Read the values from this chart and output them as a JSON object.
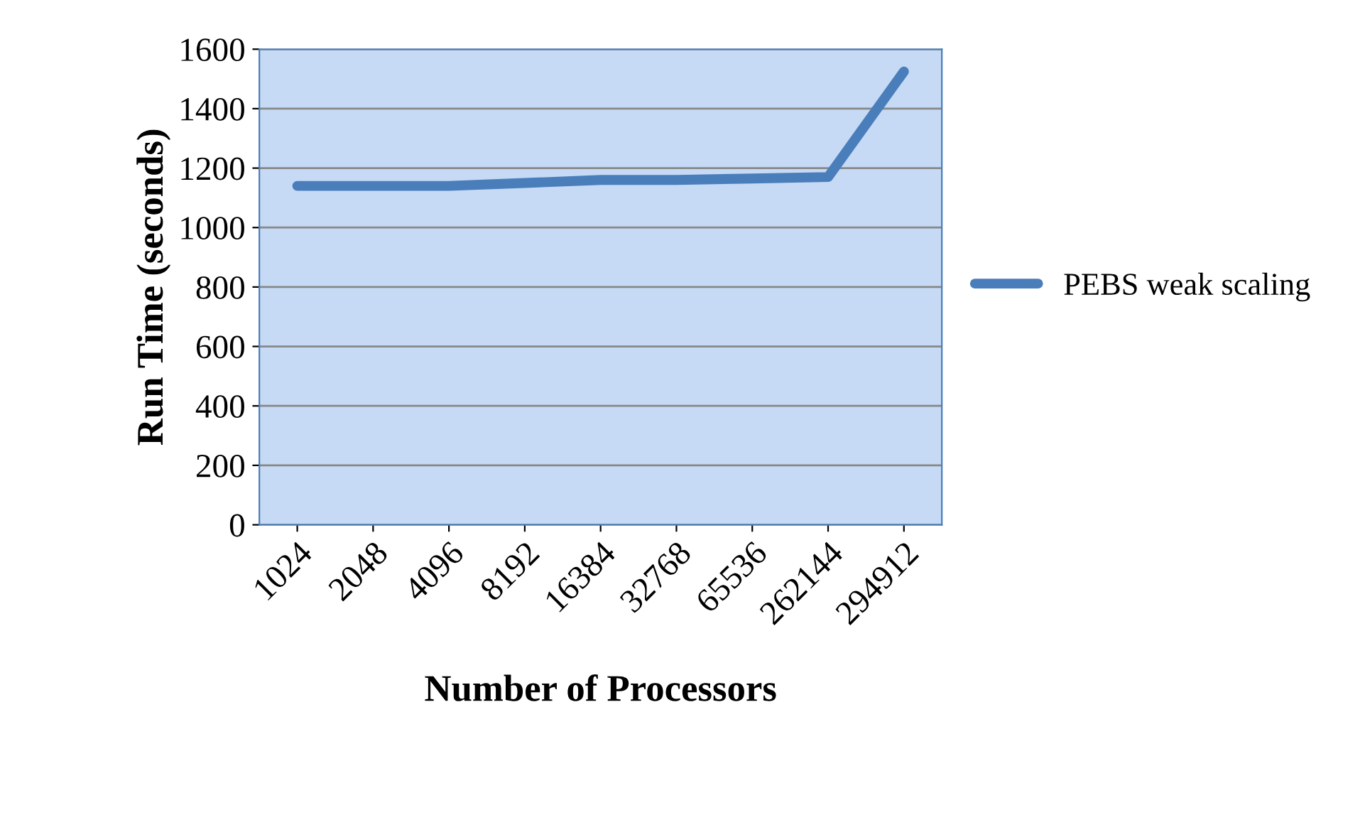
{
  "chart_data": {
    "type": "line",
    "xlabel": "Number of Processors",
    "ylabel": "Run Time (seconds)",
    "categories": [
      "1024",
      "2048",
      "4096",
      "8192",
      "16384",
      "32768",
      "65536",
      "262144",
      "294912"
    ],
    "series": [
      {
        "name": "PEBS weak scaling",
        "color": "#4a7ebb",
        "values": [
          1140,
          1140,
          1140,
          1150,
          1160,
          1160,
          1165,
          1170,
          1525
        ]
      }
    ],
    "ylim": [
      0,
      1600
    ],
    "yticks": [
      0,
      200,
      400,
      600,
      800,
      1000,
      1200,
      1400,
      1600
    ],
    "grid": "y",
    "legend": "right"
  }
}
